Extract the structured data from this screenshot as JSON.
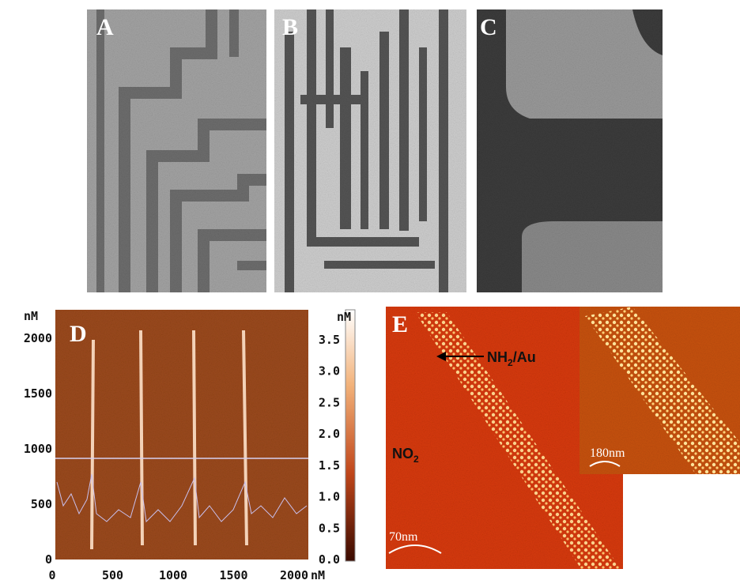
{
  "panels": {
    "a": {
      "label": "A"
    },
    "b": {
      "label": "B"
    },
    "c": {
      "label": "C"
    },
    "d": {
      "label": "D",
      "y_unit": "nM",
      "x_unit": "nM",
      "y_ticks": [
        "2000",
        "1500",
        "1000",
        "500",
        "0"
      ],
      "x_ticks": [
        "0",
        "500",
        "1000",
        "1500",
        "2000"
      ]
    },
    "colorbar": {
      "unit": "nM",
      "ticks": [
        "3.5",
        "3.0",
        "2.5",
        "2.0",
        "1.5",
        "1.0",
        "0.5",
        "0.0"
      ]
    },
    "e": {
      "label": "E",
      "arrow_text": "NH",
      "arrow_sub": "2",
      "arrow_tail": "/Au",
      "region_text": "NO",
      "region_sub": "2",
      "scale_bar": "70nm",
      "inset_scale_bar": "180nm"
    }
  }
}
